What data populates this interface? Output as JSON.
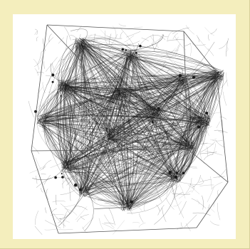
{
  "figure": {
    "subject": "cube-fiber-network",
    "colors": {
      "background": "#f4eebd",
      "panel": "#ffffff",
      "ink": "#1a1a1a",
      "edge": "#555555"
    }
  }
}
